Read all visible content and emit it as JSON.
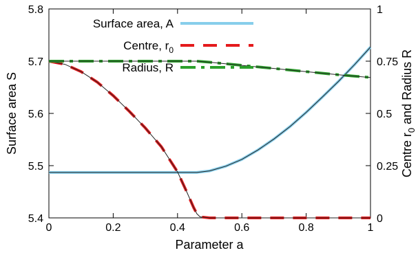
{
  "chart_data": {
    "type": "line",
    "xlabel": "Parameter a",
    "ylabel_left": "Surface area S",
    "ylabel_right_parts": [
      "Centre r",
      "0",
      " and Radius R"
    ],
    "xlim": [
      0,
      1
    ],
    "ylim_left": [
      5.4,
      5.8
    ],
    "ylim_right": [
      0,
      1
    ],
    "x_ticks": [
      "0",
      "0.2",
      "0.4",
      "0.6",
      "0.8",
      "1"
    ],
    "y_ticks_left": [
      "5.4",
      "5.5",
      "5.6",
      "5.7",
      "5.8"
    ],
    "y_ticks_right": [
      "0",
      "0.25",
      "0.5",
      "0.75",
      "1"
    ],
    "grid": false,
    "legend_position": "top-left",
    "series": [
      {
        "name": "Surface area, A",
        "legend_main": "Surface area, A",
        "legend_sub": "",
        "axis": "left",
        "color": "#87ceeb",
        "style": "solid",
        "x": [
          0,
          0.1,
          0.2,
          0.3,
          0.4,
          0.46,
          0.5,
          0.55,
          0.6,
          0.65,
          0.7,
          0.75,
          0.8,
          0.85,
          0.9,
          0.95,
          1.0
        ],
        "y": [
          5.487,
          5.487,
          5.487,
          5.487,
          5.487,
          5.487,
          5.49,
          5.499,
          5.512,
          5.53,
          5.551,
          5.575,
          5.602,
          5.631,
          5.661,
          5.693,
          5.727
        ]
      },
      {
        "name": "Centre, r0",
        "legend_main": "Centre, r",
        "legend_sub": "0",
        "axis": "right",
        "color": "#e41a1c",
        "style": "dashed",
        "x": [
          0,
          0.05,
          0.1,
          0.15,
          0.2,
          0.25,
          0.3,
          0.35,
          0.4,
          0.43,
          0.45,
          0.46,
          0.47,
          0.5,
          0.6,
          0.7,
          0.8,
          0.9,
          1.0
        ],
        "y": [
          0.75,
          0.735,
          0.7,
          0.65,
          0.585,
          0.51,
          0.43,
          0.34,
          0.22,
          0.12,
          0.05,
          0.02,
          0.005,
          0.0,
          0.0,
          0.0,
          0.0,
          0.0,
          0.0
        ]
      },
      {
        "name": "Radius, R",
        "legend_main": "Radius, R",
        "legend_sub": "",
        "axis": "right",
        "color": "#2ca02c",
        "style": "dashdot",
        "x": [
          0,
          0.1,
          0.2,
          0.3,
          0.4,
          0.46,
          0.5,
          0.6,
          0.7,
          0.8,
          0.9,
          1.0
        ],
        "y": [
          0.75,
          0.75,
          0.75,
          0.75,
          0.75,
          0.75,
          0.745,
          0.73,
          0.715,
          0.7,
          0.685,
          0.672
        ]
      }
    ]
  }
}
